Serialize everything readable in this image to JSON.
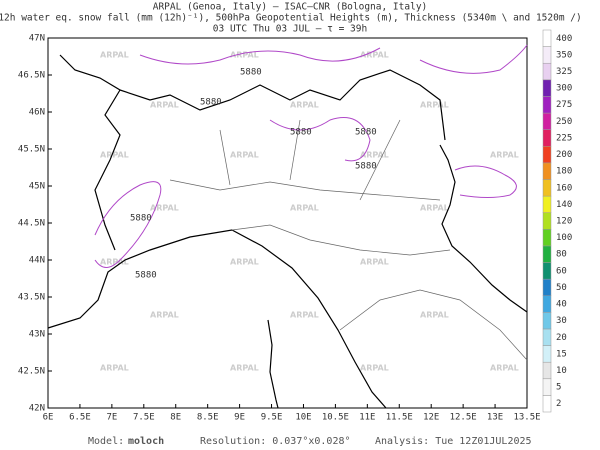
{
  "header": {
    "lines": [
      "ARPAL (Genoa, Italy)  –  ISAC–CNR (Bologna, Italy)",
      "12h water eq. snow fall (mm (12h)⁻¹), 500hPa Geopotential Heights (m), Thickness (5340m \\ and 1520m /)",
      "03 UTC Thu 03 JUL  –  τ = 39h"
    ]
  },
  "map": {
    "lon_labels": [
      "6E",
      "6.5E",
      "7E",
      "7.5E",
      "8E",
      "8.5E",
      "9E",
      "9.5E",
      "10E",
      "10.5E",
      "11E",
      "11.5E",
      "12E",
      "12.5E",
      "13E",
      "13.5E"
    ],
    "lat_labels": [
      "47N",
      "46.5N",
      "46N",
      "45.5N",
      "45N",
      "44.5N",
      "44N",
      "43.5N",
      "43N",
      "42.5N",
      "42N"
    ],
    "contour_labels": [
      "5880",
      "5880",
      "5880",
      "5880",
      "5880",
      "5880",
      "5880"
    ],
    "watermark": "ARPAL"
  },
  "colorbar": {
    "labels": [
      "2",
      "5",
      "10",
      "15",
      "20",
      "30",
      "40",
      "50",
      "60",
      "80",
      "100",
      "120",
      "140",
      "160",
      "180",
      "200",
      "225",
      "250",
      "275",
      "300",
      "325",
      "350",
      "400"
    ],
    "colors": [
      "#ffffff",
      "#f4f4f4",
      "#e6e6e6",
      "#d2f0f8",
      "#a8e0f0",
      "#70c8e8",
      "#40a8e0",
      "#2080c8",
      "#109070",
      "#20b040",
      "#60d020",
      "#b0e020",
      "#f0f020",
      "#f0c020",
      "#f09020",
      "#f04020",
      "#e02060",
      "#d020a0",
      "#a020c0",
      "#7020b0",
      "#e8d0f0",
      "#f4ecf8",
      "#ffffff"
    ]
  },
  "footer": {
    "model_label": "Model:",
    "model": "moloch",
    "resolution": "Resolution: 0.037°x0.028°",
    "analysis": "Analysis: Tue 12Z01JUL2025"
  }
}
